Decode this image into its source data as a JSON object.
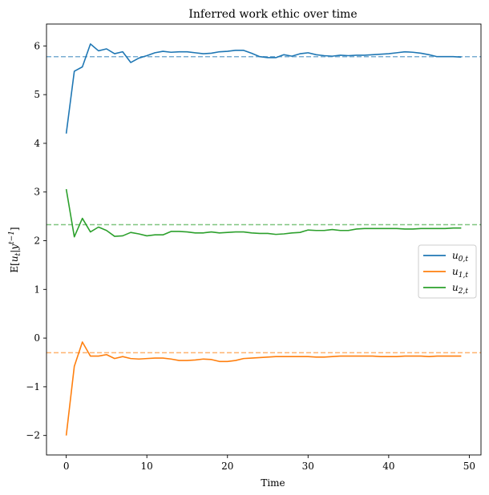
{
  "chart_data": {
    "type": "line",
    "title": "Inferred work ethic over time",
    "xlabel": "Time",
    "ylabel": "E[u_t|y^{t-1}]",
    "xlim": [
      -2.45,
      51.45
    ],
    "ylim": [
      -2.4,
      6.45
    ],
    "xticks": [
      0,
      10,
      20,
      30,
      40,
      50
    ],
    "xtick_labels": [
      "0",
      "10",
      "20",
      "30",
      "40",
      "50"
    ],
    "yticks": [
      -2,
      -1,
      0,
      1,
      2,
      3,
      4,
      5,
      6
    ],
    "ytick_labels": [
      "−2",
      "−1",
      "0",
      "1",
      "2",
      "3",
      "4",
      "5",
      "6"
    ],
    "grid": false,
    "legend_position": "center-right",
    "x": [
      0,
      1,
      2,
      3,
      4,
      5,
      6,
      7,
      8,
      9,
      10,
      11,
      12,
      13,
      14,
      15,
      16,
      17,
      18,
      19,
      20,
      21,
      22,
      23,
      24,
      25,
      26,
      27,
      28,
      29,
      30,
      31,
      32,
      33,
      34,
      35,
      36,
      37,
      38,
      39,
      40,
      41,
      42,
      43,
      44,
      45,
      46,
      47,
      48,
      49
    ],
    "series": [
      {
        "name": "u_{0,t}",
        "color": "#1f77b4",
        "values": [
          4.2,
          5.48,
          5.57,
          6.04,
          5.9,
          5.94,
          5.84,
          5.88,
          5.66,
          5.75,
          5.8,
          5.86,
          5.89,
          5.87,
          5.88,
          5.88,
          5.86,
          5.84,
          5.85,
          5.88,
          5.89,
          5.91,
          5.91,
          5.85,
          5.78,
          5.76,
          5.76,
          5.82,
          5.79,
          5.84,
          5.86,
          5.82,
          5.8,
          5.79,
          5.81,
          5.8,
          5.81,
          5.81,
          5.82,
          5.83,
          5.84,
          5.86,
          5.88,
          5.87,
          5.85,
          5.82,
          5.78,
          5.78,
          5.78,
          5.77
        ]
      },
      {
        "name": "u_{1,t}",
        "color": "#ff7f0e",
        "values": [
          -2.0,
          -0.58,
          -0.08,
          -0.37,
          -0.37,
          -0.34,
          -0.42,
          -0.38,
          -0.42,
          -0.43,
          -0.42,
          -0.41,
          -0.41,
          -0.43,
          -0.46,
          -0.46,
          -0.45,
          -0.43,
          -0.44,
          -0.48,
          -0.48,
          -0.46,
          -0.42,
          -0.41,
          -0.4,
          -0.39,
          -0.38,
          -0.38,
          -0.38,
          -0.38,
          -0.38,
          -0.39,
          -0.39,
          -0.38,
          -0.37,
          -0.37,
          -0.37,
          -0.37,
          -0.37,
          -0.38,
          -0.38,
          -0.38,
          -0.37,
          -0.37,
          -0.37,
          -0.38,
          -0.37,
          -0.37,
          -0.37,
          -0.37
        ]
      },
      {
        "name": "u_{2,t}",
        "color": "#2ca02c",
        "values": [
          3.06,
          2.08,
          2.46,
          2.18,
          2.28,
          2.21,
          2.09,
          2.1,
          2.17,
          2.14,
          2.1,
          2.12,
          2.12,
          2.19,
          2.19,
          2.18,
          2.16,
          2.16,
          2.18,
          2.16,
          2.17,
          2.18,
          2.18,
          2.16,
          2.15,
          2.15,
          2.13,
          2.14,
          2.16,
          2.17,
          2.22,
          2.21,
          2.21,
          2.23,
          2.21,
          2.21,
          2.24,
          2.25,
          2.25,
          2.25,
          2.25,
          2.25,
          2.24,
          2.24,
          2.25,
          2.25,
          2.25,
          2.25,
          2.26,
          2.26
        ]
      }
    ],
    "reference_lines": [
      {
        "y": 5.78,
        "color": "#1f77b4",
        "style": "dashed"
      },
      {
        "y": 2.33,
        "color": "#2ca02c",
        "style": "dashed"
      },
      {
        "y": -0.3,
        "color": "#ff7f0e",
        "style": "dashed"
      }
    ]
  }
}
